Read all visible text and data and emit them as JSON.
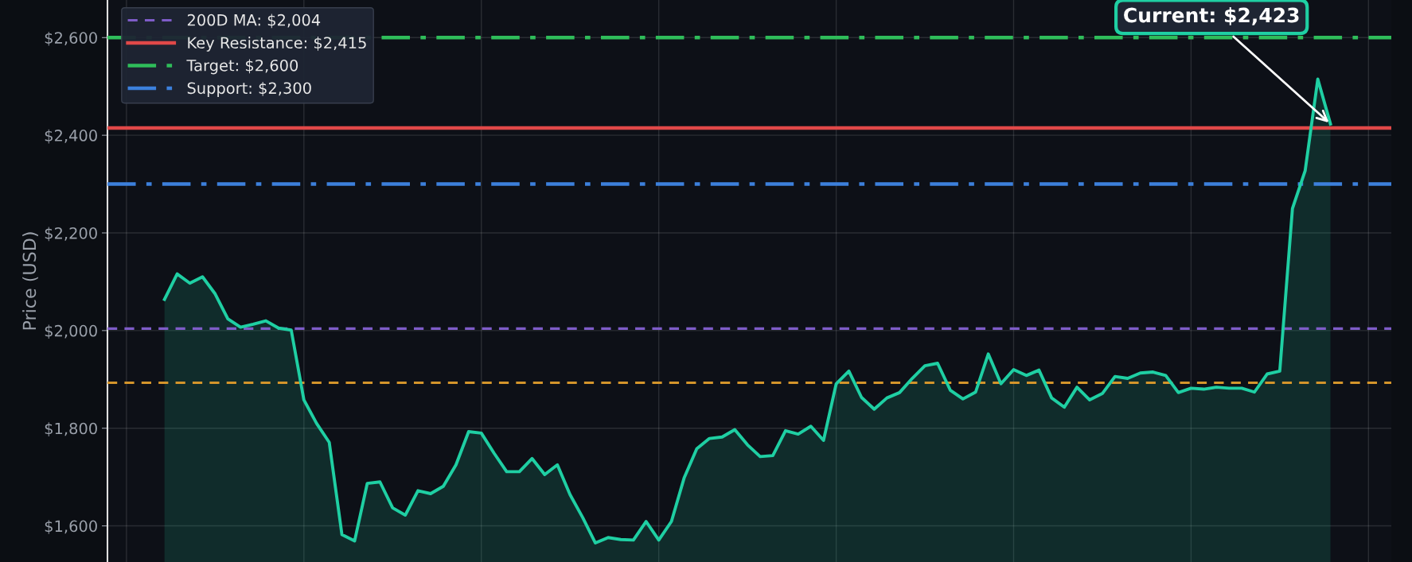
{
  "chart_data": {
    "type": "area",
    "ylabel": "Price (USD)",
    "categories": [
      null,
      null,
      null,
      null,
      null,
      null,
      null,
      null,
      null,
      null,
      null,
      null,
      null,
      null,
      null,
      null,
      null,
      null,
      null,
      null,
      null,
      null,
      null,
      null,
      null,
      null,
      null,
      null,
      null,
      null,
      null,
      null,
      null,
      null,
      null,
      null,
      null,
      null,
      null,
      null,
      null,
      null,
      null,
      null,
      null,
      null,
      null,
      null,
      null,
      null,
      null,
      null,
      null,
      null,
      null,
      null,
      null,
      null,
      null,
      null,
      null,
      null,
      null,
      null,
      null,
      null,
      null,
      null,
      null,
      null,
      null,
      null,
      null,
      null,
      null,
      null,
      null,
      null,
      null,
      null,
      null,
      null,
      null,
      null,
      null,
      null,
      null,
      null,
      null,
      null,
      null,
      null,
      null
    ],
    "series": [
      {
        "color": "#1fcfa3",
        "values": [
          2064,
          2116,
          2097,
          2110,
          2075,
          2024,
          2007,
          2013,
          2020,
          2005,
          2001,
          1858,
          1810,
          1771,
          1582,
          1569,
          1687,
          1690,
          1637,
          1622,
          1672,
          1666,
          1681,
          1725,
          1793,
          1790,
          1749,
          1711,
          1711,
          1738,
          1705,
          1725,
          1664,
          1617,
          1565,
          1576,
          1572,
          1571,
          1609,
          1571,
          1609,
          1698,
          1758,
          1779,
          1782,
          1797,
          1766,
          1742,
          1744,
          1795,
          1788,
          1804,
          1775,
          1891,
          1917,
          1863,
          1839,
          1862,
          1873,
          1902,
          1928,
          1933,
          1878,
          1860,
          1874,
          1952,
          1891,
          1920,
          1908,
          1919,
          1862,
          1843,
          1884,
          1858,
          1871,
          1906,
          1902,
          1913,
          1915,
          1908,
          1873,
          1882,
          1880,
          1884,
          1882,
          1882,
          1874,
          1911,
          1917,
          2250,
          2327,
          2515,
          2423
        ]
      }
    ],
    "ylim": [
      1526,
      2677
    ],
    "yticks": [
      {
        "value": 1600,
        "label": "$1,600"
      },
      {
        "value": 1800,
        "label": "$1,800"
      },
      {
        "value": 2000,
        "label": "$2,000"
      },
      {
        "value": 2200,
        "label": "$2,200"
      },
      {
        "value": 2400,
        "label": "$2,400"
      },
      {
        "value": 2600,
        "label": "$2,600"
      }
    ],
    "tick_labels": "y",
    "ref_lines": [
      {
        "axis": "y",
        "value": 1893,
        "label": null,
        "color": "#d4952b",
        "line_style": "dashed"
      },
      {
        "axis": "y",
        "value": 2004,
        "label": "200D MA: $2,004",
        "color": "#7e5cc8",
        "line_style": "dashed"
      },
      {
        "axis": "y",
        "value": 2415,
        "label": "Key Resistance: $2,415",
        "color": "#e04848",
        "line_style": "solid"
      },
      {
        "axis": "y",
        "value": 2600,
        "label": "Target: $2,600",
        "color": "#2fbd5a",
        "line_style": "dashdot"
      },
      {
        "axis": "y",
        "value": 2300,
        "label": "Support: $2,300",
        "color": "#3c80dc",
        "line_style": "dashdot"
      }
    ],
    "annotations": [
      "Current: $2,423"
    ],
    "grid": true,
    "legend": "top left"
  }
}
